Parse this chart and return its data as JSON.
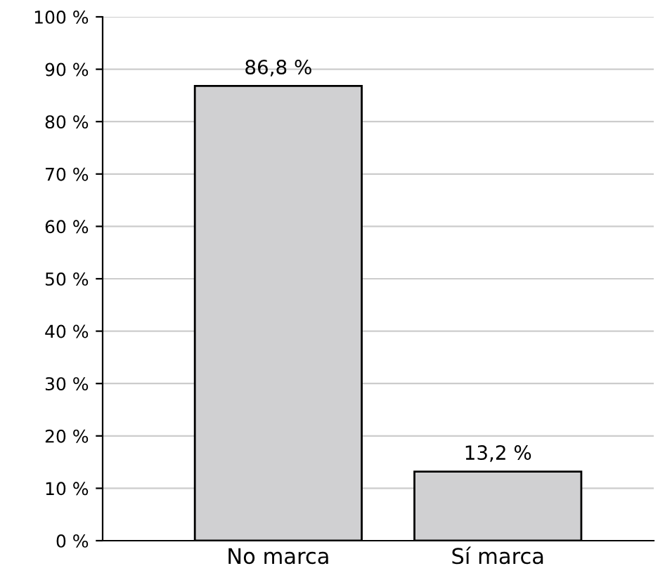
{
  "chart_data": {
    "type": "bar",
    "categories": [
      "No marca",
      "Sí marca"
    ],
    "values": [
      86.8,
      13.2
    ],
    "colors": [
      "#d0d0d2",
      "#d0d0d2"
    ],
    "value_labels": [
      "86,8 %",
      "13,2 %"
    ],
    "ylim": [
      0,
      100
    ],
    "yticks": [
      {
        "value": 0,
        "label": "0 %"
      },
      {
        "value": 10,
        "label": "10 %"
      },
      {
        "value": 20,
        "label": "20 %"
      },
      {
        "value": 30,
        "label": "30 %"
      },
      {
        "value": 40,
        "label": "40 %"
      },
      {
        "value": 50,
        "label": "50 %"
      },
      {
        "value": 60,
        "label": "60 %"
      },
      {
        "value": 70,
        "label": "70 %"
      },
      {
        "value": 80,
        "label": "80 %"
      },
      {
        "value": 90,
        "label": "90 %"
      },
      {
        "value": 100,
        "label": "100 %"
      }
    ],
    "grid": "y",
    "legend": false
  }
}
